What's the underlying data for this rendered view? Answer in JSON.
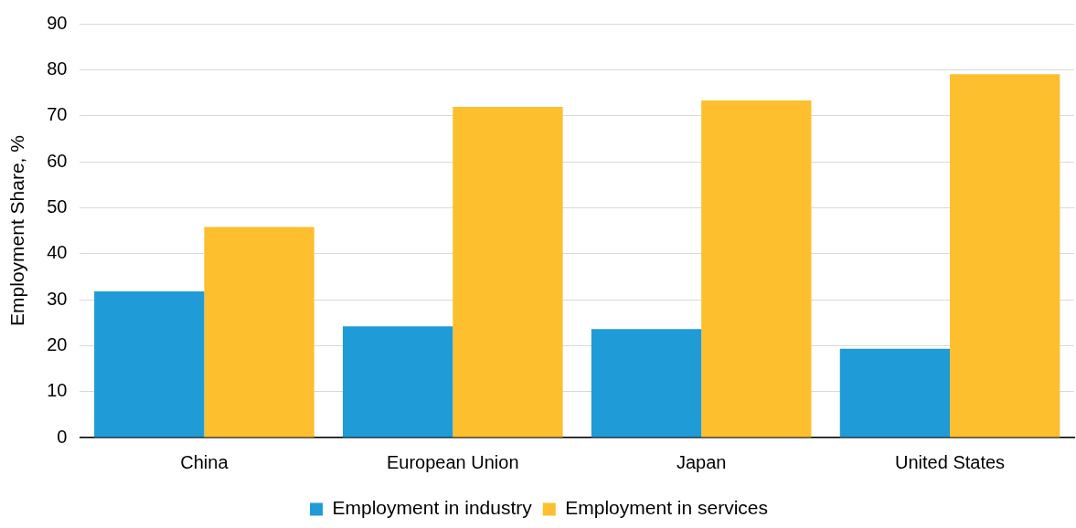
{
  "chart_data": {
    "type": "bar",
    "ylabel": "Employment Share, %",
    "categories": [
      "China",
      "European Union",
      "Japan",
      "United States"
    ],
    "series": [
      {
        "name": "Employment in industry",
        "color": "#1f9bd7",
        "values": [
          31.8,
          24.2,
          23.6,
          19.3
        ]
      },
      {
        "name": "Employment in services",
        "color": "#fdbf2d",
        "values": [
          45.8,
          71.9,
          73.3,
          79.0
        ]
      }
    ],
    "ylim": [
      0,
      90
    ],
    "yticks": [
      0,
      10,
      20,
      30,
      40,
      50,
      60,
      70,
      80,
      90
    ],
    "grid": "y",
    "legend": "bottom"
  }
}
